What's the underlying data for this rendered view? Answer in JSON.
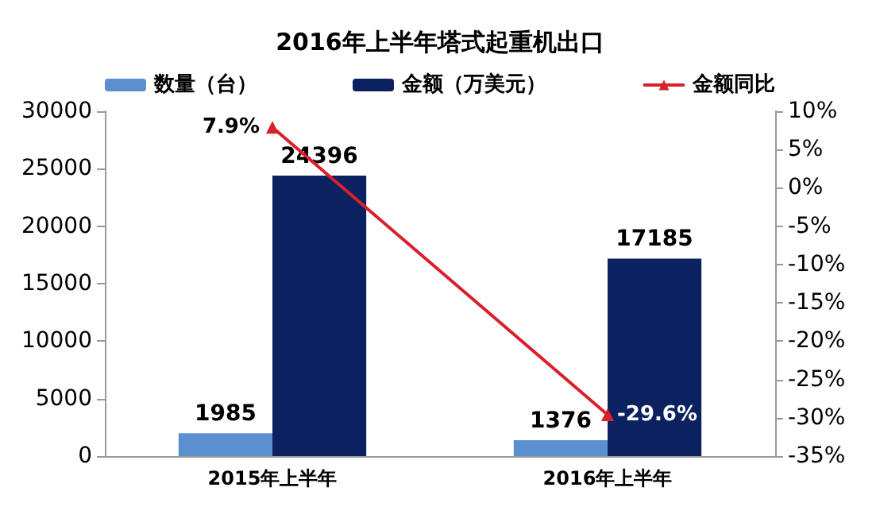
{
  "chart_data": {
    "type": "bar",
    "title": "2016年上半年塔式起重机出口",
    "categories": [
      "2015年上半年",
      "2016年上半年"
    ],
    "series": [
      {
        "name": "数量（台）",
        "color": "#5b8fd0",
        "values": [
          1985,
          1376
        ],
        "value_labels": [
          "1985",
          "1376"
        ]
      },
      {
        "name": "金额（万美元）",
        "color": "#0c2160",
        "values": [
          24396,
          17185
        ],
        "value_labels": [
          "24396",
          "17185"
        ]
      },
      {
        "name": "金额同比",
        "type": "line",
        "axis": "y2",
        "color": "#d8212a",
        "marker": "triangle",
        "values": [
          7.9,
          -29.6
        ],
        "value_labels": [
          "7.9%",
          "-29.6%"
        ]
      }
    ],
    "ylim": [
      0,
      30000
    ],
    "yticks": [
      0,
      5000,
      10000,
      15000,
      20000,
      25000,
      30000
    ],
    "y2lim": [
      -35,
      10
    ],
    "y2ticks": [
      {
        "value": -35,
        "label": "-35%"
      },
      {
        "value": -30,
        "label": "-30%"
      },
      {
        "value": -25,
        "label": "-25%"
      },
      {
        "value": -20,
        "label": "-20%"
      },
      {
        "value": -15,
        "label": "-15%"
      },
      {
        "value": -10,
        "label": "-10%"
      },
      {
        "value": -5,
        "label": "-5%"
      },
      {
        "value": 0,
        "label": "0%"
      },
      {
        "value": 5,
        "label": "5%"
      },
      {
        "value": 10,
        "label": "10%"
      }
    ],
    "legend": "top",
    "grid": false
  }
}
